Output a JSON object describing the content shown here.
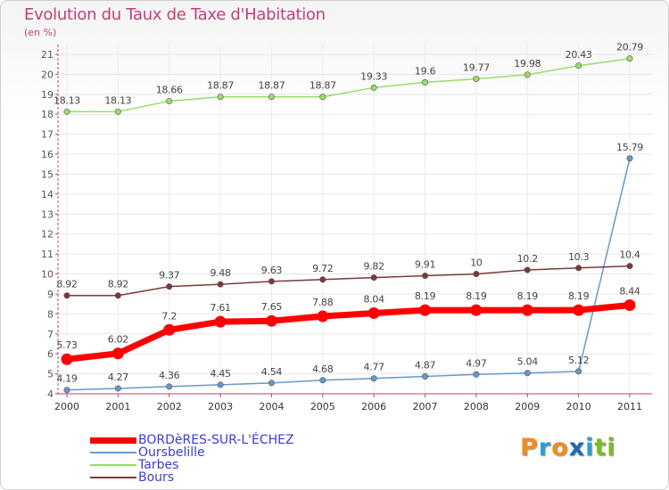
{
  "header": {
    "title": "Evolution du Taux de Taxe d'Habitation",
    "subtitle": "(en %)"
  },
  "logo": {
    "letters": [
      "P",
      "r",
      "o",
      "x",
      "i",
      "t",
      "i"
    ],
    "colors": [
      "#f28c1e",
      "#2a9fd6",
      "#f28c1e",
      "#1f66b5",
      "#2a9fd6",
      "#7dbb2a",
      "#7dbb2a"
    ]
  },
  "chart_data": {
    "type": "line",
    "categories": [
      "2000",
      "2001",
      "2002",
      "2003",
      "2004",
      "2005",
      "2006",
      "2007",
      "2008",
      "2009",
      "2010",
      "2011"
    ],
    "ylim": [
      4,
      21
    ],
    "yticks": [
      4,
      5,
      6,
      7,
      8,
      9,
      10,
      11,
      12,
      13,
      14,
      15,
      16,
      17,
      18,
      19,
      20,
      21
    ],
    "grid": true,
    "legend_position": "bottom-left",
    "series": [
      {
        "name": "BORDèRES-SUR-L'ÉCHEZ",
        "color": "#ff0000",
        "values": [
          5.73,
          6.02,
          7.2,
          7.61,
          7.65,
          7.88,
          8.04,
          8.19,
          8.19,
          8.19,
          8.19,
          8.44
        ],
        "labels": [
          "5.73",
          "6.02",
          "7.2",
          "7.61",
          "7.65",
          "7.88",
          "8.04",
          "8.19",
          "8.19",
          "8.19",
          "8.19",
          "8.44"
        ],
        "emphasis": true
      },
      {
        "name": "Oursbelille",
        "color": "#6699cc",
        "values": [
          4.19,
          4.27,
          4.36,
          4.45,
          4.54,
          4.68,
          4.77,
          4.87,
          4.97,
          5.04,
          5.12,
          15.79
        ],
        "labels": [
          "4.19",
          "4.27",
          "4.36",
          "4.45",
          "4.54",
          "4.68",
          "4.77",
          "4.87",
          "4.97",
          "5.04",
          "5.12",
          "15.79"
        ],
        "emphasis": false
      },
      {
        "name": "Tarbes",
        "color": "#99dd66",
        "values": [
          18.13,
          18.13,
          18.66,
          18.87,
          18.87,
          18.87,
          19.33,
          19.6,
          19.77,
          19.98,
          20.43,
          20.79
        ],
        "labels": [
          "18.13",
          "18.13",
          "18.66",
          "18.87",
          "18.87",
          "18.87",
          "19.33",
          "19.6",
          "19.77",
          "19.98",
          "20.43",
          "20.79"
        ],
        "emphasis": false
      },
      {
        "name": "Bours",
        "color": "#7a3a3a",
        "values": [
          8.92,
          8.92,
          9.37,
          9.48,
          9.63,
          9.72,
          9.82,
          9.91,
          10,
          10.2,
          10.3,
          10.4
        ],
        "labels": [
          "8.92",
          "8.92",
          "9.37",
          "9.48",
          "9.63",
          "9.72",
          "9.82",
          "9.91",
          "10",
          "10.2",
          "10.3",
          "10.4"
        ],
        "emphasis": false
      }
    ]
  }
}
